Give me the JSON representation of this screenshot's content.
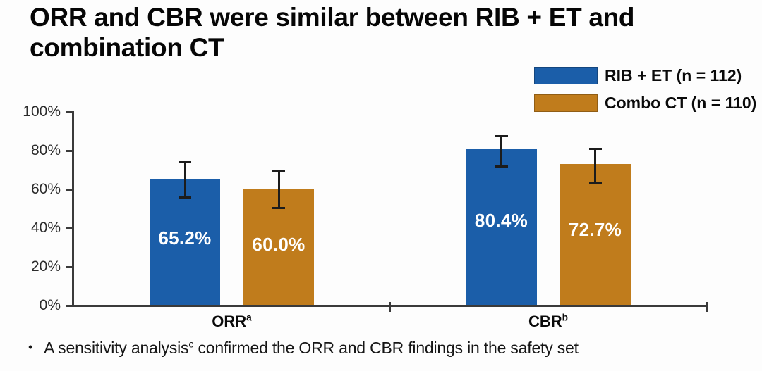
{
  "slide": {
    "title": "ORR and CBR were similar between RIB + ET and combination CT",
    "footnote": {
      "bullet": "•",
      "prefix": "A sensitivity analysis",
      "sup": "c",
      "suffix": " confirmed the ORR and CBR findings in the safety set"
    }
  },
  "colors": {
    "rib_et_blue": "#1B5EA9",
    "combo_ct_orange": "#C07C1C",
    "axis": "#3A3A3A",
    "error_bar": "#1C1C1C",
    "bar_value_text": "#FFFFFF",
    "title_text": "#060606"
  },
  "chart_data": {
    "type": "bar",
    "title": "",
    "xlabel": "",
    "ylabel": "",
    "categories": [
      {
        "label": "ORR",
        "sup": "a"
      },
      {
        "label": "CBR",
        "sup": "b"
      }
    ],
    "series": [
      {
        "name": "RIB + ET (n = 112)",
        "color": "#1B5EA9",
        "values": [
          65.2,
          80.4
        ],
        "value_labels": [
          "65.2%",
          "80.4%"
        ],
        "error_bars": [
          [
            55.6,
            73.9
          ],
          [
            71.8,
            87.3
          ]
        ]
      },
      {
        "name": "Combo CT (n = 110)",
        "color": "#C07C1C",
        "values": [
          60.0,
          72.7
        ],
        "value_labels": [
          "60.0%",
          "72.7%"
        ],
        "error_bars": [
          [
            50.3,
            69.1
          ],
          [
            63.4,
            80.8
          ]
        ]
      }
    ],
    "ylim": [
      0,
      100
    ],
    "yticks": [
      0,
      20,
      40,
      60,
      80,
      100
    ],
    "ytick_labels": [
      "0%",
      "20%",
      "40%",
      "60%",
      "80%",
      "100%"
    ],
    "grid": false,
    "legend_position": "top-right",
    "error_bars_shown": true
  }
}
